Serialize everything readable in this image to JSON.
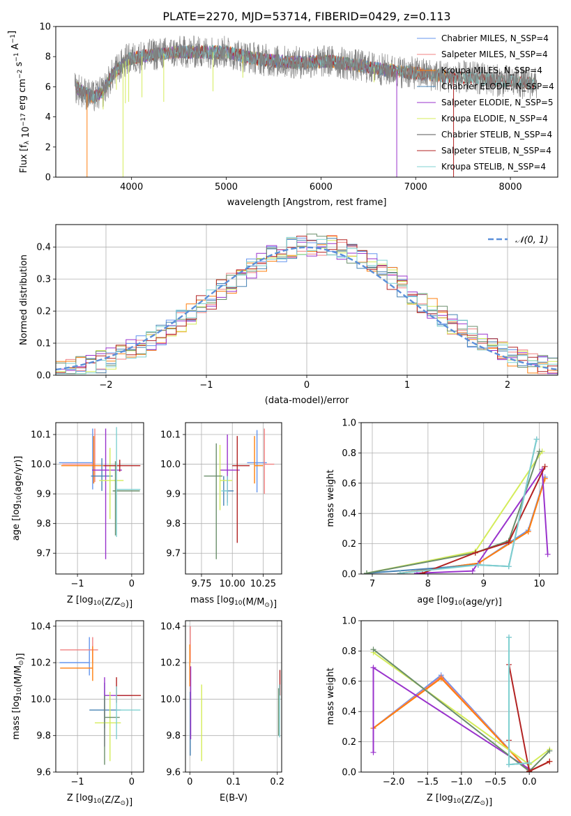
{
  "figure_title": "PLATE=2270, MJD=53714, FIBERID=0429, z=0.113",
  "series_colors": {
    "Chabrier MILES": "#6495ed",
    "Salpeter MILES": "#f08080",
    "Kroupa MILES": "#ff7f0e",
    "Chabrier ELODIE": "#4682b4",
    "Salpeter ELODIE": "#9932cc",
    "Kroupa ELODIE": "#d4ec5a",
    "Chabrier STELIB": "#6b8e6b",
    "Salpeter STELIB": "#b22222",
    "Kroupa STELIB": "#7fd0d0",
    "model_gray": "#808080",
    "gaussian": "#5b8fd9"
  },
  "chart_data": [
    {
      "id": "spectrum",
      "type": "line",
      "title": "PLATE=2270, MJD=53714, FIBERID=0429, z=0.113",
      "xlabel": "wavelength [Angstrom, rest frame]",
      "ylabel": "Flux [f_λ 10^-17 erg cm^-2 s^-1 A^-1]",
      "xlim": [
        3200,
        8500
      ],
      "ylim": [
        0,
        10
      ],
      "xticks": [
        4000,
        5000,
        6000,
        7000,
        8000
      ],
      "yticks": [
        0,
        2,
        4,
        6,
        8,
        10
      ],
      "grid": false,
      "legend_position": "top-right",
      "legend": [
        "Chabrier MILES, N_SSP=4",
        "Salpeter MILES, N_SSP=4",
        "Kroupa MILES, N_SSP=4",
        "Chabrier ELODIE, N_SSP=4",
        "Salpeter ELODIE, N_SSP=5",
        "Kroupa ELODIE, N_SSP=4",
        "Chabrier STELIB, N_SSP=4",
        "Salpeter STELIB, N_SSP=4",
        "Kroupa STELIB, N_SSP=4"
      ],
      "continuum_points": [
        [
          3410,
          6.0
        ],
        [
          3500,
          5.6
        ],
        [
          3600,
          5.3
        ],
        [
          3700,
          5.7
        ],
        [
          3800,
          6.8
        ],
        [
          3950,
          7.8
        ],
        [
          4100,
          8.0
        ],
        [
          4300,
          8.2
        ],
        [
          4500,
          8.3
        ],
        [
          4700,
          8.3
        ],
        [
          5000,
          8.3
        ],
        [
          5200,
          8.0
        ],
        [
          5500,
          7.7
        ],
        [
          5800,
          7.6
        ],
        [
          6100,
          7.7
        ],
        [
          6400,
          7.4
        ],
        [
          6700,
          7.1
        ],
        [
          7000,
          6.9
        ],
        [
          7300,
          6.7
        ],
        [
          7600,
          6.6
        ],
        [
          7900,
          6.4
        ],
        [
          8100,
          6.3
        ],
        [
          8280,
          6.2
        ]
      ],
      "dips": [
        [
          3530,
          0.0
        ],
        [
          3700,
          4.5
        ],
        [
          3840,
          5.8
        ],
        [
          3910,
          0.0
        ],
        [
          3935,
          4.9
        ],
        [
          3970,
          5.0
        ],
        [
          4110,
          5.3
        ],
        [
          4340,
          5.0
        ],
        [
          4860,
          5.7
        ],
        [
          5175,
          6.6
        ],
        [
          6560,
          6.3
        ],
        [
          6800,
          0.0
        ],
        [
          7400,
          0.0
        ]
      ]
    },
    {
      "id": "residuals",
      "type": "step-histogram",
      "xlabel": "(data-model)/error",
      "ylabel": "Normed distribution",
      "xlim": [
        -2.5,
        2.5
      ],
      "ylim": [
        0,
        0.47
      ],
      "xticks": [
        -2,
        -1,
        0,
        1,
        2
      ],
      "yticks": [
        0.0,
        0.1,
        0.2,
        0.3,
        0.4
      ],
      "grid": true,
      "legend_position": "top-right",
      "legend": [
        "𝒩(0, 1)"
      ],
      "bin_width": 0.1,
      "bin_start": -2.5
    },
    {
      "id": "age_vs_Z",
      "type": "errorbar",
      "xlabel": "Z [log10(Z/Z⊙)]",
      "ylabel": "age [log10(age/yr)]",
      "xlim": [
        -1.4,
        0.22
      ],
      "ylim": [
        9.63,
        10.14
      ],
      "xticks": [
        -1,
        0
      ],
      "yticks": [
        9.7,
        9.8,
        9.9,
        10.0,
        10.1
      ],
      "grid": true,
      "points": [
        {
          "series": "Chabrier MILES",
          "x": -0.72,
          "xerr": [
            0.62,
            0.0
          ],
          "y": 10.005,
          "yerr": [
            0.09,
            0.115
          ]
        },
        {
          "series": "Salpeter MILES",
          "x": -0.68,
          "xerr": [
            0.6,
            0.0
          ],
          "y": 10.0,
          "yerr": [
            0.06,
            0.12
          ]
        },
        {
          "series": "Kroupa MILES",
          "x": -0.7,
          "xerr": [
            0.6,
            0.5
          ],
          "y": 9.995,
          "yerr": [
            0.06,
            0.1
          ]
        },
        {
          "series": "Chabrier ELODIE",
          "x": -0.55,
          "xerr": [
            0.2,
            0.2
          ],
          "y": 9.96,
          "yerr": [
            0.05,
            0.06
          ]
        },
        {
          "series": "Salpeter ELODIE",
          "x": -0.48,
          "xerr": [
            0.25,
            0.3
          ],
          "y": 9.98,
          "yerr": [
            0.3,
            0.14
          ]
        },
        {
          "series": "Kroupa ELODIE",
          "x": -0.4,
          "xerr": [
            0.2,
            0.25
          ],
          "y": 9.945,
          "yerr": [
            0.13,
            0.11
          ]
        },
        {
          "series": "Chabrier STELIB",
          "x": -0.3,
          "xerr": [
            0.05,
            0.45
          ],
          "y": 9.91,
          "yerr": [
            0.15,
            0.1
          ]
        },
        {
          "series": "Salpeter STELIB",
          "x": -0.22,
          "xerr": [
            0.3,
            0.38
          ],
          "y": 9.995,
          "yerr": [
            0.02,
            0.02
          ]
        },
        {
          "series": "Kroupa STELIB",
          "x": -0.28,
          "xerr": [
            0.0,
            0.44
          ],
          "y": 9.915,
          "yerr": [
            0.16,
            0.21
          ]
        }
      ]
    },
    {
      "id": "age_vs_mass",
      "type": "errorbar",
      "xlabel": "mass [log10(M/M⊙)]",
      "ylabel": "",
      "xlim": [
        9.62,
        10.4
      ],
      "ylim": [
        9.63,
        10.14
      ],
      "xticks": [
        9.75,
        10.0,
        10.25
      ],
      "xtick_labels": [
        "9.75",
        "10.00",
        "10.25"
      ],
      "yticks": [
        9.7,
        9.8,
        9.9,
        10.0,
        10.1
      ],
      "grid": true,
      "points": [
        {
          "series": "Chabrier MILES",
          "x": 10.2,
          "xerr": [
            0.08,
            0.08
          ],
          "y": 10.005,
          "yerr": [
            0.1,
            0.11
          ]
        },
        {
          "series": "Salpeter MILES",
          "x": 10.26,
          "xerr": [
            0.0,
            0.08
          ],
          "y": 10.0,
          "yerr": [
            0.1,
            0.12
          ]
        },
        {
          "series": "Kroupa MILES",
          "x": 10.18,
          "xerr": [
            0.0,
            0.07
          ],
          "y": 9.995,
          "yerr": [
            0.06,
            0.1
          ]
        },
        {
          "series": "Chabrier ELODIE",
          "x": 9.93,
          "xerr": [
            0.0,
            0.08
          ],
          "y": 9.91,
          "yerr": [
            0.05,
            0.05
          ]
        },
        {
          "series": "Salpeter ELODIE",
          "x": 9.96,
          "xerr": [
            0.06,
            0.1
          ],
          "y": 9.98,
          "yerr": [
            0.11,
            0.12
          ]
        },
        {
          "series": "Kroupa ELODIE",
          "x": 9.9,
          "xerr": [
            0.0,
            0.1
          ],
          "y": 9.945,
          "yerr": [
            0.1,
            0.12
          ]
        },
        {
          "series": "Chabrier STELIB",
          "x": 9.87,
          "xerr": [
            0.1,
            0.05
          ],
          "y": 9.96,
          "yerr": [
            0.28,
            0.11
          ]
        },
        {
          "series": "Salpeter STELIB",
          "x": 10.04,
          "xerr": [
            0.04,
            0.1
          ],
          "y": 9.995,
          "yerr": [
            0.26,
            0.1
          ]
        },
        {
          "series": "Kroupa STELIB",
          "x": 9.96,
          "xerr": [
            0.05,
            0.0
          ],
          "y": 9.91,
          "yerr": [
            0.05,
            0.05
          ]
        }
      ]
    },
    {
      "id": "weight_vs_age",
      "type": "line",
      "xlabel": "age [log10(age/yr)]",
      "ylabel": "mass weight",
      "xlim": [
        6.8,
        10.33
      ],
      "ylim": [
        0,
        1
      ],
      "xticks": [
        7,
        8,
        9,
        10
      ],
      "yticks": [
        0.0,
        0.2,
        0.4,
        0.6,
        0.8,
        1.0
      ],
      "grid": true,
      "series": [
        {
          "series": "Chabrier MILES",
          "x": [
            7.5,
            8.9,
            9.8,
            10.1
          ],
          "y": [
            0.005,
            0.07,
            0.29,
            0.64
          ]
        },
        {
          "series": "Salpeter MILES",
          "x": [
            7.5,
            8.9,
            9.8,
            10.1
          ],
          "y": [
            0.005,
            0.07,
            0.28,
            0.63
          ]
        },
        {
          "series": "Kroupa MILES",
          "x": [
            7.5,
            8.9,
            9.8,
            10.1
          ],
          "y": [
            0.005,
            0.07,
            0.28,
            0.63
          ]
        },
        {
          "series": "Chabrier ELODIE",
          "x": [
            6.9,
            8.9,
            9.45,
            9.95
          ],
          "y": [
            0.005,
            0.06,
            0.05,
            0.89
          ]
        },
        {
          "series": "Salpeter ELODIE",
          "x": [
            7.8,
            8.8,
            10.05,
            10.15
          ],
          "y": [
            0.005,
            0.02,
            0.69,
            0.13
          ]
        },
        {
          "series": "Kroupa ELODIE",
          "x": [
            6.9,
            8.85,
            10.05
          ],
          "y": [
            0.005,
            0.15,
            0.81
          ]
        },
        {
          "series": "Chabrier STELIB",
          "x": [
            6.9,
            8.85,
            9.45,
            10.0
          ],
          "y": [
            0.005,
            0.14,
            0.22,
            0.81
          ]
        },
        {
          "series": "Salpeter STELIB",
          "x": [
            7.9,
            8.85,
            9.45,
            10.1
          ],
          "y": [
            0.005,
            0.14,
            0.21,
            0.71
          ]
        },
        {
          "series": "Kroupa STELIB",
          "x": [
            7.5,
            8.9,
            9.45,
            9.95
          ],
          "y": [
            0.005,
            0.06,
            0.05,
            0.89
          ]
        }
      ]
    },
    {
      "id": "mass_vs_Z",
      "type": "errorbar",
      "xlabel": "Z [log10(Z/Z⊙)]",
      "ylabel": "mass [log10(M/M⊙)]",
      "xlim": [
        -1.4,
        0.22
      ],
      "ylim": [
        9.6,
        10.43
      ],
      "xticks": [
        -1,
        0
      ],
      "yticks": [
        9.6,
        9.8,
        10.0,
        10.2,
        10.4
      ],
      "grid": true,
      "points": [
        {
          "series": "Chabrier MILES",
          "x": -0.78,
          "xerr": [
            0.55,
            0.0
          ],
          "y": 10.2,
          "yerr": [
            0.07,
            0.14
          ]
        },
        {
          "series": "Salpeter MILES",
          "x": -0.72,
          "xerr": [
            0.6,
            0.1
          ],
          "y": 10.27,
          "yerr": [
            0.07,
            0.07
          ]
        },
        {
          "series": "Kroupa MILES",
          "x": -0.72,
          "xerr": [
            0.6,
            0.0
          ],
          "y": 10.17,
          "yerr": [
            0.07,
            0.12
          ]
        },
        {
          "series": "Chabrier ELODIE",
          "x": -0.5,
          "xerr": [
            0.28,
            0.3
          ],
          "y": 9.94,
          "yerr": [
            0.1,
            0.15
          ]
        },
        {
          "series": "Salpeter ELODIE",
          "x": -0.5,
          "xerr": [
            0.0,
            0.5
          ],
          "y": 10.02,
          "yerr": [
            0.28,
            0.1
          ]
        },
        {
          "series": "Kroupa ELODIE",
          "x": -0.4,
          "xerr": [
            0.28,
            0.2
          ],
          "y": 9.87,
          "yerr": [
            0.21,
            0.17
          ]
        },
        {
          "series": "Chabrier STELIB",
          "x": -0.5,
          "xerr": [
            0.0,
            0.28
          ],
          "y": 9.9,
          "yerr": [
            0.26,
            0.12
          ]
        },
        {
          "series": "Salpeter STELIB",
          "x": -0.28,
          "xerr": [
            0.0,
            0.45
          ],
          "y": 10.02,
          "yerr": [
            0.04,
            0.1
          ]
        },
        {
          "series": "Kroupa STELIB",
          "x": -0.28,
          "xerr": [
            0.0,
            0.44
          ],
          "y": 9.94,
          "yerr": [
            0.16,
            0.13
          ]
        }
      ]
    },
    {
      "id": "mass_vs_EBV",
      "type": "errorbar",
      "xlabel": "E(B-V)",
      "ylabel": "",
      "xlim": [
        -0.01,
        0.21
      ],
      "ylim": [
        9.6,
        10.43
      ],
      "xticks": [
        0.0,
        0.1,
        0.2
      ],
      "yticks": [
        9.6,
        9.8,
        10.0,
        10.2,
        10.4
      ],
      "grid": true,
      "points": [
        {
          "series": "Chabrier MILES",
          "x": 0.0,
          "xerr": [
            0,
            0
          ],
          "y": 10.2,
          "yerr": [
            0.1,
            0.1
          ]
        },
        {
          "series": "Salpeter MILES",
          "x": 0.001,
          "xerr": [
            0,
            0
          ],
          "y": 10.27,
          "yerr": [
            0.07,
            0.13
          ]
        },
        {
          "series": "Kroupa MILES",
          "x": 0.0,
          "xerr": [
            0,
            0
          ],
          "y": 10.17,
          "yerr": [
            0.1,
            0.13
          ]
        },
        {
          "series": "Chabrier ELODIE",
          "x": 0.001,
          "xerr": [
            0,
            0
          ],
          "y": 9.94,
          "yerr": [
            0.25,
            0.1
          ]
        },
        {
          "series": "Salpeter ELODIE",
          "x": 0.002,
          "xerr": [
            0,
            0
          ],
          "y": 10.02,
          "yerr": [
            0.24,
            0.16
          ]
        },
        {
          "series": "Kroupa ELODIE",
          "x": 0.027,
          "xerr": [
            0,
            0
          ],
          "y": 9.87,
          "yerr": [
            0.21,
            0.21
          ]
        },
        {
          "series": "Chabrier STELIB",
          "x": 0.203,
          "xerr": [
            0,
            0
          ],
          "y": 9.9,
          "yerr": [
            0.1,
            0.16
          ]
        },
        {
          "series": "Salpeter STELIB",
          "x": 0.206,
          "xerr": [
            0,
            0
          ],
          "y": 10.08,
          "yerr": [
            0.06,
            0.08
          ]
        },
        {
          "series": "Kroupa STELIB",
          "x": 0.205,
          "xerr": [
            0,
            0
          ],
          "y": 9.94,
          "yerr": [
            0.15,
            0.14
          ]
        }
      ]
    },
    {
      "id": "weight_vs_Z",
      "type": "line",
      "xlabel": "Z [log10(Z/Z⊙)]",
      "ylabel": "mass weight",
      "xlim": [
        -2.48,
        0.42
      ],
      "ylim": [
        0,
        1
      ],
      "xticks": [
        -2.0,
        -1.5,
        -1.0,
        -0.5,
        0.0
      ],
      "yticks": [
        0.0,
        0.2,
        0.4,
        0.6,
        0.8,
        1.0
      ],
      "grid": true,
      "series": [
        {
          "series": "Chabrier MILES",
          "x": [
            -2.3,
            -1.3,
            0.0,
            0.3
          ],
          "y": [
            0.29,
            0.64,
            0.005,
            0.07
          ]
        },
        {
          "series": "Salpeter MILES",
          "x": [
            -2.3,
            -1.3,
            0.0,
            0.3
          ],
          "y": [
            0.29,
            0.63,
            0.005,
            0.07
          ]
        },
        {
          "series": "Kroupa MILES",
          "x": [
            -2.3,
            -1.3,
            0.0,
            0.3
          ],
          "y": [
            0.29,
            0.62,
            0.005,
            0.07
          ]
        },
        {
          "series": "Chabrier ELODIE",
          "x": [
            -0.3,
            -0.3,
            0.0
          ],
          "y": [
            0.89,
            0.05,
            0.06
          ]
        },
        {
          "series": "Salpeter ELODIE",
          "x": [
            -2.3,
            -2.3,
            0.0
          ],
          "y": [
            0.13,
            0.69,
            0.02
          ]
        },
        {
          "series": "Kroupa ELODIE",
          "x": [
            -2.3,
            0.0,
            0.3
          ],
          "y": [
            0.79,
            0.05,
            0.15
          ]
        },
        {
          "series": "Chabrier STELIB",
          "x": [
            -2.3,
            0.0,
            0.3
          ],
          "y": [
            0.81,
            0.005,
            0.14
          ]
        },
        {
          "series": "Salpeter STELIB",
          "x": [
            -0.3,
            -0.3,
            0.0,
            0.3
          ],
          "y": [
            0.21,
            0.71,
            0.005,
            0.07
          ]
        },
        {
          "series": "Kroupa STELIB",
          "x": [
            -0.3,
            -0.3,
            0.0
          ],
          "y": [
            0.89,
            0.05,
            0.06
          ]
        }
      ]
    }
  ]
}
